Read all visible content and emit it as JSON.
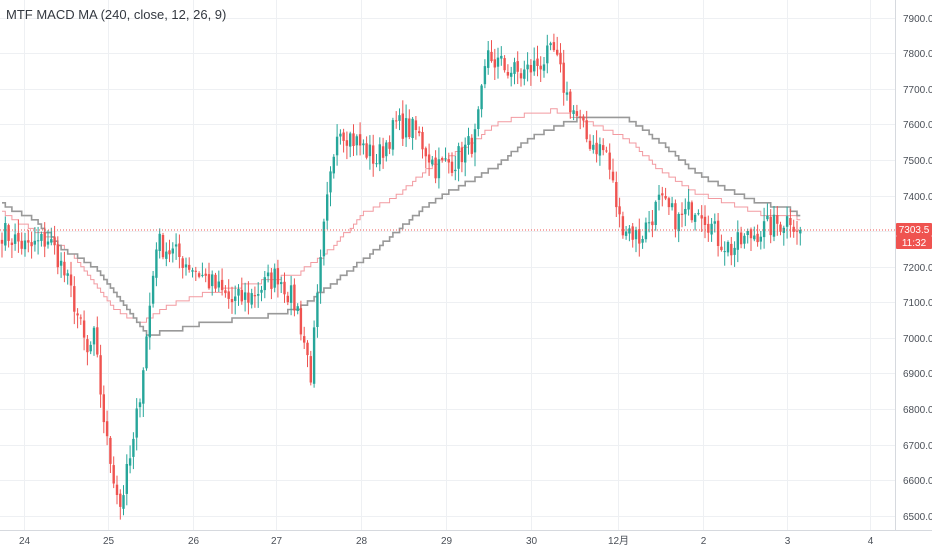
{
  "indicator_title": "MTF MACD MA (240, close, 12, 26, 9)",
  "last_price_label": "7303.5",
  "countdown_label": "11:32",
  "colors": {
    "up": "#26a69a",
    "down": "#ef5350",
    "slow_ma": "#999999",
    "fast_ma": "#f29aa0",
    "price_line": "#ef5350",
    "grid": "#eef0f3",
    "label_bg": "#ef5350"
  },
  "chart_data": {
    "type": "candlestick",
    "title": "MTF MACD MA (240, close, 12, 26, 9)",
    "y_ticks": [
      6500,
      6600,
      6700,
      6800,
      6900,
      7000,
      7100,
      7200,
      7300,
      7400,
      7500,
      7600,
      7700,
      7800,
      7900
    ],
    "y_tick_labels": [
      "6500.0",
      "6600.0",
      "6700.0",
      "6800.0",
      "6900.0",
      "7000.0",
      "7100.0",
      "7200.0",
      "7300.0",
      "7400.0",
      "7500.0",
      "7600.0",
      "7700.0",
      "7800.0",
      "7900.0"
    ],
    "ylim": [
      6460,
      7950
    ],
    "x_tick_labels": [
      "24",
      "25",
      "26",
      "27",
      "28",
      "29",
      "30",
      "12月",
      "2",
      "3",
      "4"
    ],
    "last_price": 7303.5,
    "keypoints": [
      [
        0,
        7300
      ],
      [
        8,
        7250
      ],
      [
        14,
        7280
      ],
      [
        17,
        7230
      ],
      [
        22,
        7100
      ],
      [
        26,
        6950
      ],
      [
        28,
        7000
      ],
      [
        32,
        6700
      ],
      [
        36,
        6530
      ],
      [
        40,
        6700
      ],
      [
        44,
        7000
      ],
      [
        47,
        7270
      ],
      [
        52,
        7240
      ],
      [
        58,
        7200
      ],
      [
        64,
        7150
      ],
      [
        70,
        7100
      ],
      [
        76,
        7120
      ],
      [
        84,
        7180
      ],
      [
        90,
        7080
      ],
      [
        94,
        6900
      ],
      [
        98,
        7300
      ],
      [
        102,
        7600
      ],
      [
        108,
        7550
      ],
      [
        114,
        7500
      ],
      [
        120,
        7600
      ],
      [
        126,
        7580
      ],
      [
        132,
        7480
      ],
      [
        138,
        7500
      ],
      [
        144,
        7560
      ],
      [
        148,
        7790
      ],
      [
        153,
        7760
      ],
      [
        158,
        7740
      ],
      [
        163,
        7770
      ],
      [
        168,
        7800
      ],
      [
        172,
        7680
      ],
      [
        178,
        7560
      ],
      [
        184,
        7520
      ],
      [
        188,
        7330
      ],
      [
        194,
        7280
      ],
      [
        200,
        7380
      ],
      [
        206,
        7330
      ],
      [
        212,
        7380
      ],
      [
        218,
        7280
      ],
      [
        222,
        7250
      ],
      [
        230,
        7300
      ],
      [
        236,
        7320
      ],
      [
        240,
        7340
      ],
      [
        243,
        7303
      ]
    ],
    "slow_ma_keypoints": [
      [
        0,
        7375
      ],
      [
        10,
        7330
      ],
      [
        18,
        7250
      ],
      [
        28,
        7200
      ],
      [
        36,
        7100
      ],
      [
        44,
        7010
      ],
      [
        52,
        7020
      ],
      [
        60,
        7040
      ],
      [
        70,
        7050
      ],
      [
        80,
        7060
      ],
      [
        90,
        7080
      ],
      [
        100,
        7150
      ],
      [
        110,
        7220
      ],
      [
        120,
        7300
      ],
      [
        130,
        7380
      ],
      [
        140,
        7430
      ],
      [
        150,
        7480
      ],
      [
        160,
        7560
      ],
      [
        170,
        7600
      ],
      [
        178,
        7625
      ],
      [
        190,
        7620
      ],
      [
        200,
        7550
      ],
      [
        210,
        7470
      ],
      [
        220,
        7420
      ],
      [
        230,
        7380
      ],
      [
        240,
        7360
      ],
      [
        243,
        7340
      ]
    ],
    "fast_ma_keypoints": [
      [
        0,
        7350
      ],
      [
        10,
        7300
      ],
      [
        18,
        7260
      ],
      [
        26,
        7180
      ],
      [
        34,
        7080
      ],
      [
        42,
        7040
      ],
      [
        50,
        7090
      ],
      [
        60,
        7120
      ],
      [
        70,
        7140
      ],
      [
        80,
        7160
      ],
      [
        90,
        7180
      ],
      [
        100,
        7250
      ],
      [
        110,
        7350
      ],
      [
        120,
        7400
      ],
      [
        130,
        7480
      ],
      [
        140,
        7530
      ],
      [
        150,
        7600
      ],
      [
        160,
        7630
      ],
      [
        168,
        7640
      ],
      [
        178,
        7610
      ],
      [
        190,
        7560
      ],
      [
        200,
        7470
      ],
      [
        210,
        7410
      ],
      [
        220,
        7380
      ],
      [
        230,
        7350
      ],
      [
        240,
        7345
      ],
      [
        243,
        7330
      ]
    ]
  }
}
